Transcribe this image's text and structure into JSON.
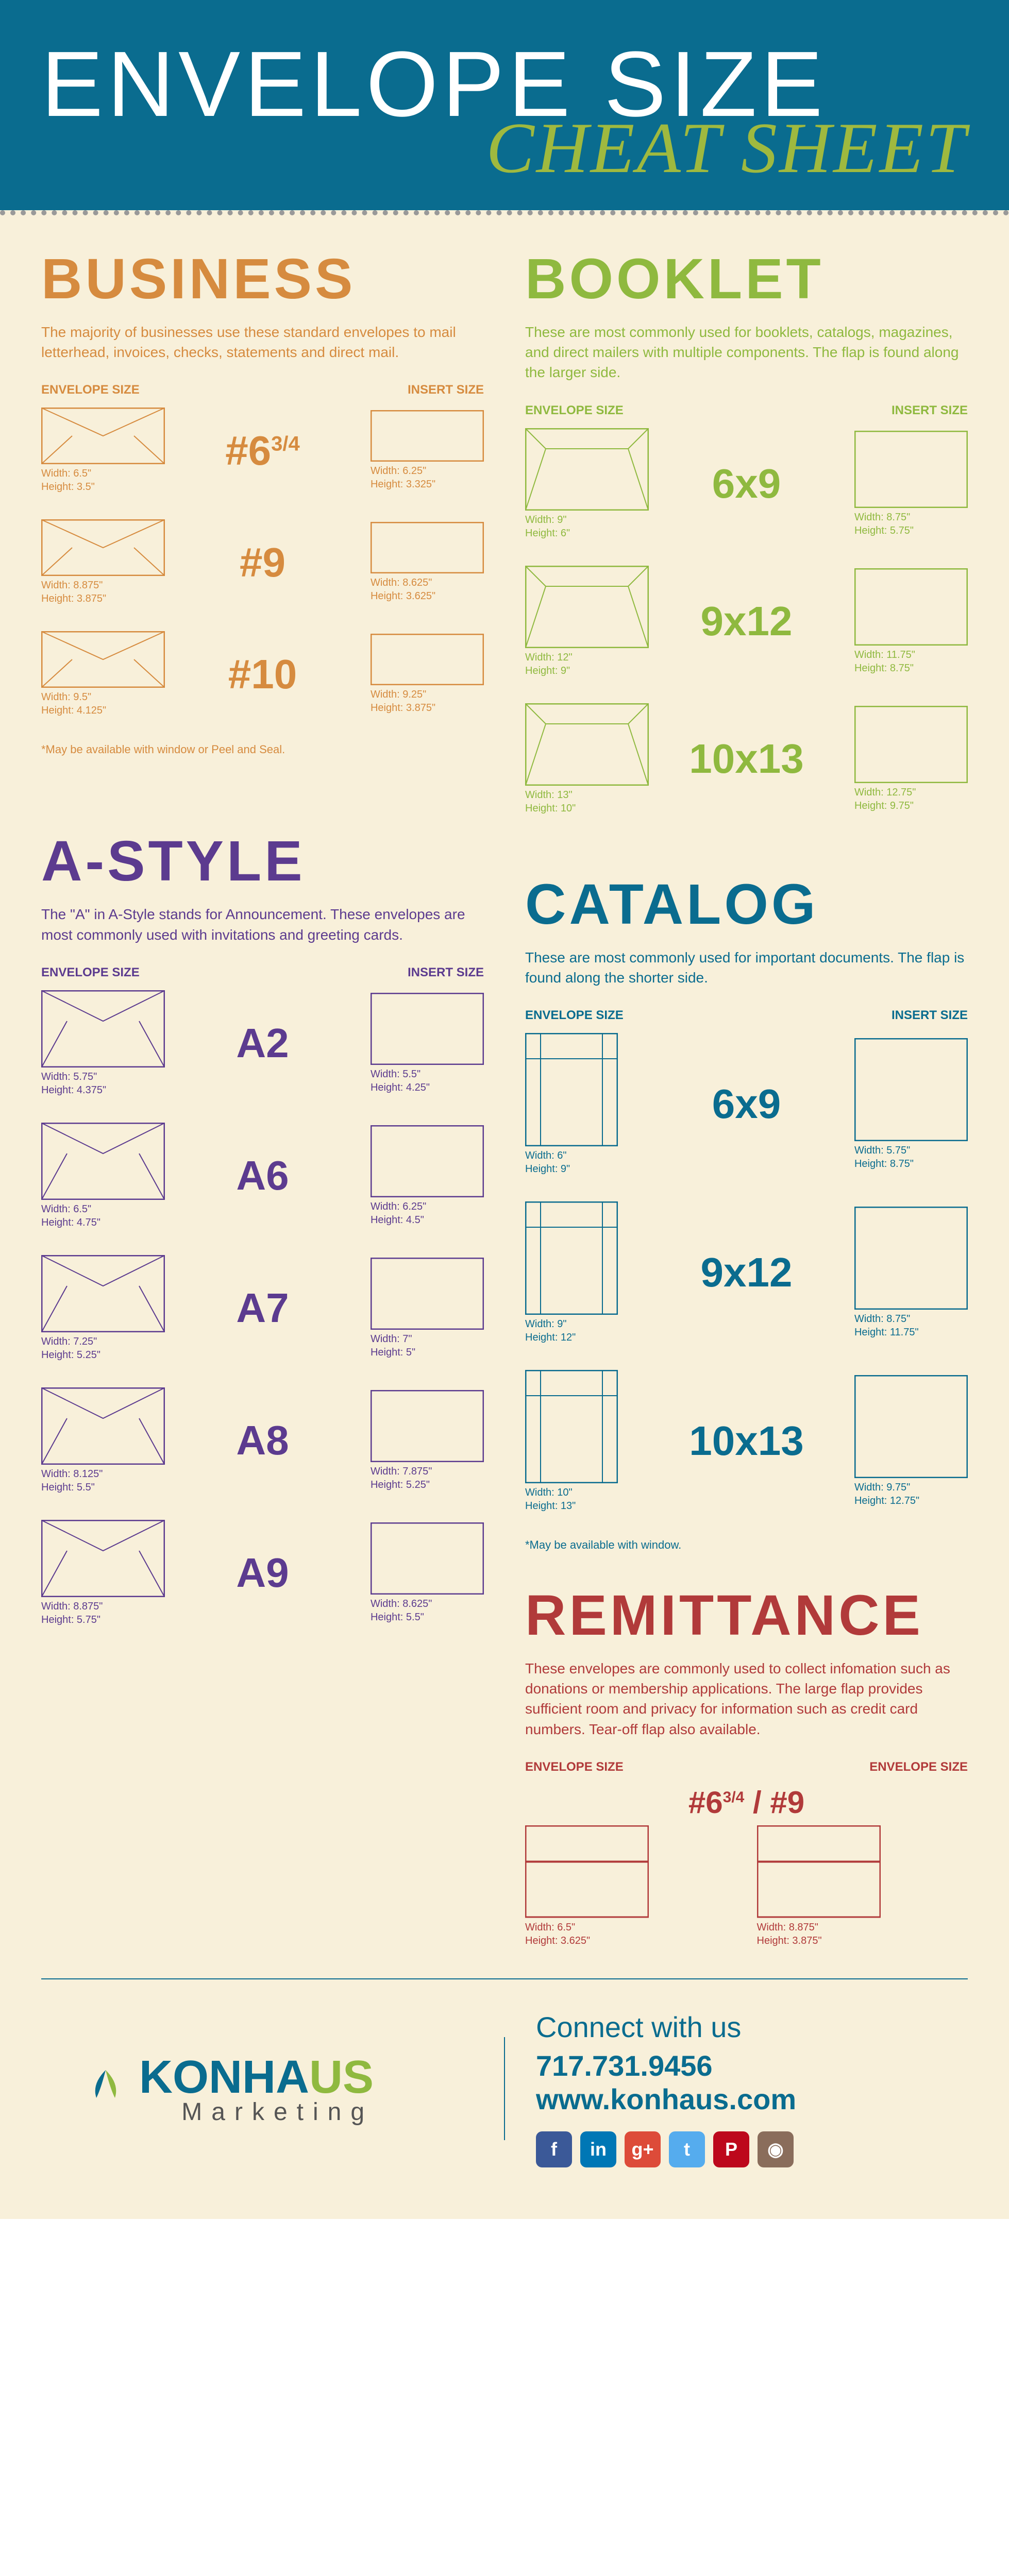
{
  "header": {
    "title": "ENVELOPE SIZE",
    "subtitle": "CHEAT SHEET"
  },
  "colHeaders": {
    "env": "ENVELOPE SIZE",
    "ins": "INSERT SIZE"
  },
  "business": {
    "title": "BUSINESS",
    "desc": "The majority of businesses use these standard envelopes to mail letterhead, invoices, checks, statements and direct mail.",
    "note": "*May be available with window or Peel and Seal.",
    "items": [
      {
        "label": "#6",
        "sup": "3/4",
        "env": {
          "w": "Width: 6.5\"",
          "h": "Height: 3.5\""
        },
        "ins": {
          "w": "Width: 6.25\"",
          "h": "Height: 3.325\""
        }
      },
      {
        "label": "#9",
        "sup": "",
        "env": {
          "w": "Width: 8.875\"",
          "h": "Height: 3.875\""
        },
        "ins": {
          "w": "Width: 8.625\"",
          "h": "Height: 3.625\""
        }
      },
      {
        "label": "#10",
        "sup": "",
        "env": {
          "w": "Width: 9.5\"",
          "h": "Height: 4.125\""
        },
        "ins": {
          "w": "Width: 9.25\"",
          "h": "Height: 3.875\""
        }
      }
    ]
  },
  "booklet": {
    "title": "BOOKLET",
    "desc": "These are most commonly used for booklets, catalogs, magazines, and direct mailers with multiple components. The flap is found along the larger side.",
    "items": [
      {
        "label": "6x9",
        "env": {
          "w": "Width: 9\"",
          "h": "Height: 6\""
        },
        "ins": {
          "w": "Width: 8.75\"",
          "h": "Height: 5.75\""
        }
      },
      {
        "label": "9x12",
        "env": {
          "w": "Width: 12\"",
          "h": "Height: 9\""
        },
        "ins": {
          "w": "Width: 11.75\"",
          "h": "Height: 8.75\""
        }
      },
      {
        "label": "10x13",
        "env": {
          "w": "Width: 13\"",
          "h": "Height: 10\""
        },
        "ins": {
          "w": "Width: 12.75\"",
          "h": "Height: 9.75\""
        }
      }
    ]
  },
  "catalog": {
    "title": "CATALOG",
    "desc": "These are most commonly used for important documents. The flap is found along the shorter side.",
    "note": "*May be available with window.",
    "items": [
      {
        "label": "6x9",
        "env": {
          "w": "Width: 6\"",
          "h": "Height: 9\""
        },
        "ins": {
          "w": "Width: 5.75\"",
          "h": "Height: 8.75\""
        }
      },
      {
        "label": "9x12",
        "env": {
          "w": "Width: 9\"",
          "h": "Height: 12\""
        },
        "ins": {
          "w": "Width: 8.75\"",
          "h": "Height: 11.75\""
        }
      },
      {
        "label": "10x13",
        "env": {
          "w": "Width: 10\"",
          "h": "Height: 13\""
        },
        "ins": {
          "w": "Width: 9.75\"",
          "h": "Height: 12.75\""
        }
      }
    ]
  },
  "astyle": {
    "title": "A-STYLE",
    "desc": "The \"A\" in A-Style stands for Announcement. These envelopes are most commonly used with invitations and greeting cards.",
    "items": [
      {
        "label": "A2",
        "env": {
          "w": "Width: 5.75\"",
          "h": "Height: 4.375\""
        },
        "ins": {
          "w": "Width: 5.5\"",
          "h": "Height: 4.25\""
        }
      },
      {
        "label": "A6",
        "env": {
          "w": "Width: 6.5\"",
          "h": "Height: 4.75\""
        },
        "ins": {
          "w": "Width: 6.25\"",
          "h": "Height: 4.5\""
        }
      },
      {
        "label": "A7",
        "env": {
          "w": "Width: 7.25\"",
          "h": "Height: 5.25\""
        },
        "ins": {
          "w": "Width: 7\"",
          "h": "Height: 5\""
        }
      },
      {
        "label": "A8",
        "env": {
          "w": "Width: 8.125\"",
          "h": "Height: 5.5\""
        },
        "ins": {
          "w": "Width: 7.875\"",
          "h": "Height: 5.25\""
        }
      },
      {
        "label": "A9",
        "env": {
          "w": "Width: 8.875\"",
          "h": "Height: 5.75\""
        },
        "ins": {
          "w": "Width: 8.625\"",
          "h": "Height: 5.5\""
        }
      }
    ]
  },
  "remittance": {
    "title": "REMITTANCE",
    "desc": "These envelopes are commonly used to collect infomation such as donations or membership applications. The large flap provides sufficient room and privacy for information such as credit card numbers. Tear-off flap also available.",
    "label": "#6³/₄ / #9",
    "items": [
      {
        "env": {
          "w": "Width: 6.5\"",
          "h": "Height: 3.625\""
        }
      },
      {
        "env": {
          "w": "Width: 8.875\"",
          "h": "Height: 3.875\""
        }
      }
    ]
  },
  "footer": {
    "logo": {
      "part1": "KONHA",
      "part2": "US",
      "sub": "Marketing"
    },
    "connect": "Connect with us",
    "phone": "717.731.9456",
    "web": "www.konhaus.com",
    "socials": [
      {
        "name": "facebook",
        "bg": "#3b5998",
        "txt": "f"
      },
      {
        "name": "linkedin",
        "bg": "#0077b5",
        "txt": "in"
      },
      {
        "name": "googleplus",
        "bg": "#dd4b39",
        "txt": "g+"
      },
      {
        "name": "twitter",
        "bg": "#55acee",
        "txt": "t"
      },
      {
        "name": "pinterest",
        "bg": "#bd081c",
        "txt": "P"
      },
      {
        "name": "instagram",
        "bg": "#8a6d5b",
        "txt": "◉"
      }
    ]
  }
}
